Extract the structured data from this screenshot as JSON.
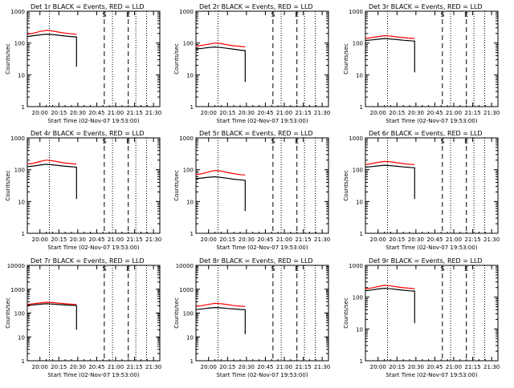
{
  "colors": {
    "events": "#000000",
    "lld": "#ff0000",
    "axes": "#000000",
    "background": "#ffffff"
  },
  "shared": {
    "ylabel": "Counts/sec",
    "xlabel": "Start Time (02-Nov-07 19:53:00)",
    "xtick_labels": [
      "20:00",
      "20:15",
      "20:30",
      "20:45",
      "21:00",
      "21:15",
      "21:30"
    ],
    "xtick_minutes": [
      0,
      15,
      30,
      45,
      60,
      75,
      90
    ],
    "xlim_minutes": [
      -10,
      95
    ],
    "dotted_lines_minutes": [
      7.5,
      57.5,
      76,
      84.5
    ],
    "dashed_lines_minutes": [
      51,
      70
    ],
    "event_markers": [
      {
        "label": "S",
        "minutes": 51
      },
      {
        "label": "E",
        "minutes": 70
      }
    ],
    "yscale": "log"
  },
  "chart_data": [
    {
      "type": "line",
      "title": "Det 1r  BLACK = Events, RED = LLD",
      "ylim": [
        1,
        1000
      ],
      "ytick_labels": [
        "1",
        "10",
        "100",
        "1000"
      ],
      "x_minutes": [
        -10,
        -5,
        0,
        5,
        10,
        15,
        20,
        25,
        29
      ],
      "series": [
        {
          "name": "Events",
          "values": [
            160,
            170,
            180,
            190,
            185,
            175,
            165,
            160,
            155
          ],
          "drop_to": 18
        },
        {
          "name": "LLD",
          "values": [
            190,
            205,
            230,
            250,
            240,
            220,
            205,
            195,
            190
          ],
          "drop_to": null
        }
      ]
    },
    {
      "type": "line",
      "title": "Det 2r  BLACK = Events, RED = LLD",
      "ylim": [
        1,
        1000
      ],
      "ytick_labels": [
        "1",
        "10",
        "100",
        "1000"
      ],
      "x_minutes": [
        -10,
        -5,
        0,
        5,
        10,
        15,
        20,
        25,
        29
      ],
      "series": [
        {
          "name": "Events",
          "values": [
            65,
            68,
            72,
            75,
            72,
            68,
            64,
            60,
            58
          ],
          "drop_to": 6
        },
        {
          "name": "LLD",
          "values": [
            80,
            85,
            92,
            100,
            96,
            88,
            82,
            78,
            76
          ],
          "drop_to": null
        }
      ]
    },
    {
      "type": "line",
      "title": "Det 3r  BLACK = Events, RED = LLD",
      "ylim": [
        1,
        1000
      ],
      "ytick_labels": [
        "1",
        "10",
        "100",
        "1000"
      ],
      "x_minutes": [
        -10,
        -5,
        0,
        5,
        10,
        15,
        20,
        25,
        29
      ],
      "series": [
        {
          "name": "Events",
          "values": [
            120,
            125,
            132,
            138,
            134,
            128,
            122,
            118,
            115
          ],
          "drop_to": 12
        },
        {
          "name": "LLD",
          "values": [
            140,
            148,
            160,
            170,
            165,
            155,
            148,
            142,
            138
          ],
          "drop_to": null
        }
      ]
    },
    {
      "type": "line",
      "title": "Det 4r  BLACK = Events, RED = LLD",
      "ylim": [
        1,
        1000
      ],
      "ytick_labels": [
        "1",
        "10",
        "100",
        "1000"
      ],
      "x_minutes": [
        -10,
        -5,
        0,
        5,
        10,
        15,
        20,
        25,
        29
      ],
      "series": [
        {
          "name": "Events",
          "values": [
            125,
            130,
            140,
            148,
            142,
            135,
            128,
            124,
            120
          ],
          "drop_to": 12
        },
        {
          "name": "LLD",
          "values": [
            150,
            160,
            180,
            200,
            190,
            175,
            162,
            155,
            150
          ],
          "drop_to": null
        }
      ]
    },
    {
      "type": "line",
      "title": "Det 5r  BLACK = Events, RED = LLD",
      "ylim": [
        1,
        1000
      ],
      "ytick_labels": [
        "1",
        "10",
        "100",
        "1000"
      ],
      "x_minutes": [
        -10,
        -5,
        0,
        5,
        10,
        15,
        20,
        25,
        29
      ],
      "series": [
        {
          "name": "Events",
          "values": [
            52,
            55,
            58,
            60,
            57,
            54,
            50,
            48,
            46
          ],
          "drop_to": 5
        },
        {
          "name": "LLD",
          "values": [
            70,
            75,
            85,
            95,
            90,
            82,
            75,
            70,
            68
          ],
          "drop_to": null
        }
      ]
    },
    {
      "type": "line",
      "title": "Det 6r  BLACK = Events, RED = LLD",
      "ylim": [
        1,
        1000
      ],
      "ytick_labels": [
        "1",
        "10",
        "100",
        "1000"
      ],
      "x_minutes": [
        -10,
        -5,
        0,
        5,
        10,
        15,
        20,
        25,
        29
      ],
      "series": [
        {
          "name": "Events",
          "values": [
            120,
            125,
            132,
            138,
            134,
            128,
            122,
            118,
            115
          ],
          "drop_to": 12
        },
        {
          "name": "LLD",
          "values": [
            145,
            155,
            170,
            182,
            176,
            165,
            155,
            148,
            145
          ],
          "drop_to": null
        }
      ]
    },
    {
      "type": "line",
      "title": "Det 7r  BLACK = Events, RED = LLD",
      "ylim": [
        1,
        10000
      ],
      "ytick_labels": [
        "1",
        "10",
        "100",
        "1000",
        "10000"
      ],
      "x_minutes": [
        -10,
        -5,
        0,
        5,
        10,
        15,
        20,
        25,
        29
      ],
      "series": [
        {
          "name": "Events",
          "values": [
            210,
            220,
            235,
            245,
            238,
            228,
            218,
            210,
            205
          ],
          "drop_to": 20
        },
        {
          "name": "LLD",
          "values": [
            230,
            245,
            265,
            285,
            275,
            260,
            245,
            235,
            230
          ],
          "drop_to": null
        }
      ]
    },
    {
      "type": "line",
      "title": "Det 8r  BLACK = Events, RED = LLD",
      "ylim": [
        1,
        10000
      ],
      "ytick_labels": [
        "1",
        "10",
        "100",
        "1000",
        "10000"
      ],
      "x_minutes": [
        -10,
        -5,
        0,
        5,
        10,
        15,
        20,
        25,
        29
      ],
      "series": [
        {
          "name": "Events",
          "values": [
            140,
            150,
            160,
            170,
            165,
            155,
            148,
            142,
            138
          ],
          "drop_to": 13
        },
        {
          "name": "LLD",
          "values": [
            190,
            205,
            230,
            255,
            245,
            225,
            205,
            195,
            190
          ],
          "drop_to": null
        }
      ]
    },
    {
      "type": "line",
      "title": "Det 9r  BLACK = Events, RED = LLD",
      "ylim": [
        1,
        1000
      ],
      "ytick_labels": [
        "1",
        "10",
        "100",
        "1000"
      ],
      "x_minutes": [
        -10,
        -5,
        0,
        5,
        10,
        15,
        20,
        25,
        29
      ],
      "series": [
        {
          "name": "Events",
          "values": [
            160,
            168,
            180,
            190,
            184,
            174,
            165,
            158,
            155
          ],
          "drop_to": 15
        },
        {
          "name": "LLD",
          "values": [
            185,
            195,
            215,
            235,
            225,
            210,
            198,
            190,
            185
          ],
          "drop_to": null
        }
      ]
    }
  ]
}
